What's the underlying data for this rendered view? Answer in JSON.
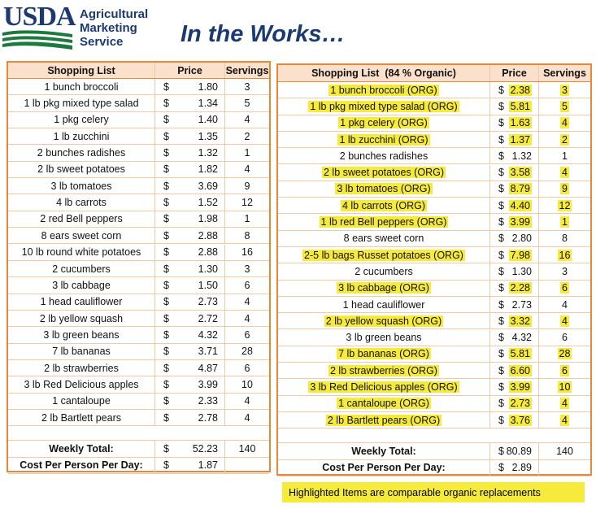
{
  "header": {
    "logo": "USDA",
    "agency": [
      "Agricultural",
      "Marketing",
      "Service"
    ],
    "title": "In the Works…"
  },
  "left_table": {
    "currency": "$",
    "columns": [
      "Shopping List",
      "Price",
      "Servings"
    ],
    "rows": [
      {
        "item": "1 bunch broccoli",
        "price": "1.80",
        "servings": 3
      },
      {
        "item": "1 lb pkg mixed type salad",
        "price": "1.34",
        "servings": 5
      },
      {
        "item": "1 pkg celery",
        "price": "1.40",
        "servings": 4
      },
      {
        "item": "1 lb zucchini",
        "price": "1.35",
        "servings": 2
      },
      {
        "item": "2 bunches radishes",
        "price": "1.32",
        "servings": 1
      },
      {
        "item": "2 lb sweet potatoes",
        "price": "1.82",
        "servings": 4
      },
      {
        "item": "3 lb tomatoes",
        "price": "3.69",
        "servings": 9
      },
      {
        "item": "4 lb carrots",
        "price": "1.52",
        "servings": 12
      },
      {
        "item": "2 red Bell peppers",
        "price": "1.98",
        "servings": 1
      },
      {
        "item": "8 ears sweet corn",
        "price": "2.88",
        "servings": 8
      },
      {
        "item": "10 lb round white potatoes",
        "price": "2.88",
        "servings": 16
      },
      {
        "item": "2 cucumbers",
        "price": "1.30",
        "servings": 3
      },
      {
        "item": "3 lb cabbage",
        "price": "1.50",
        "servings": 6
      },
      {
        "item": "1 head cauliflower",
        "price": "2.73",
        "servings": 4
      },
      {
        "item": "2 lb yellow squash",
        "price": "2.72",
        "servings": 4
      },
      {
        "item": "3 lb green beans",
        "price": "4.32",
        "servings": 6
      },
      {
        "item": "7 lb bananas",
        "price": "3.71",
        "servings": 28
      },
      {
        "item": "2 lb strawberries",
        "price": "4.87",
        "servings": 6
      },
      {
        "item": "3 lb Red Delicious apples",
        "price": "3.99",
        "servings": 10
      },
      {
        "item": "1 cantaloupe",
        "price": "2.33",
        "servings": 4
      },
      {
        "item": "2 lb Bartlett pears",
        "price": "2.78",
        "servings": 4
      }
    ],
    "total": {
      "label": "Weekly Total:",
      "price": "52.23",
      "servings": 140
    },
    "per_person": {
      "label": "Cost Per Person Per Day:",
      "price": "1.87"
    }
  },
  "right_table": {
    "currency": "$",
    "columns": [
      "Shopping List  (84 % Organic)",
      "Price",
      "Servings"
    ],
    "rows": [
      {
        "item": "1 bunch broccoli (ORG)",
        "price": "2.38",
        "servings": 3,
        "organic": true
      },
      {
        "item": "1 lb pkg mixed type salad (ORG)",
        "price": "5.81",
        "servings": 5,
        "organic": true
      },
      {
        "item": "1 pkg celery (ORG)",
        "price": "1.63",
        "servings": 4,
        "organic": true
      },
      {
        "item": "1 lb zucchini (ORG)",
        "price": "1.37",
        "servings": 2,
        "organic": true
      },
      {
        "item": "2 bunches radishes",
        "price": "1.32",
        "servings": 1,
        "organic": false
      },
      {
        "item": "2 lb sweet potatoes (ORG)",
        "price": "3.58",
        "servings": 4,
        "organic": true
      },
      {
        "item": "3 lb tomatoes (ORG)",
        "price": "8.79",
        "servings": 9,
        "organic": true
      },
      {
        "item": "4 lb carrots (ORG)",
        "price": "4.40",
        "servings": 12,
        "organic": true
      },
      {
        "item": "1 lb red Bell peppers (ORG)",
        "price": "3.99",
        "servings": 1,
        "organic": true
      },
      {
        "item": "8 ears sweet corn",
        "price": "2.80",
        "servings": 8,
        "organic": false
      },
      {
        "item": "2-5 lb bags Russet potatoes (ORG)",
        "price": "7.98",
        "servings": 16,
        "organic": true
      },
      {
        "item": "2 cucumbers",
        "price": "1.30",
        "servings": 3,
        "organic": false
      },
      {
        "item": "3 lb cabbage (ORG)",
        "price": "2.28",
        "servings": 6,
        "organic": true
      },
      {
        "item": "1 head cauliflower",
        "price": "2.73",
        "servings": 4,
        "organic": false
      },
      {
        "item": "2 lb yellow squash (ORG)",
        "price": "3.32",
        "servings": 4,
        "organic": true
      },
      {
        "item": "3 lb green beans",
        "price": "4.32",
        "servings": 6,
        "organic": false
      },
      {
        "item": "7 lb bananas (ORG)",
        "price": "5.81",
        "servings": 28,
        "organic": true
      },
      {
        "item": "2 lb strawberries (ORG)",
        "price": "6.60",
        "servings": 6,
        "organic": true
      },
      {
        "item": "3 lb Red Delicious apples (ORG)",
        "price": "3.99",
        "servings": 10,
        "organic": true
      },
      {
        "item": "1 cantaloupe (ORG)",
        "price": "2.73",
        "servings": 4,
        "organic": true
      },
      {
        "item": "2 lb Bartlett pears (ORG)",
        "price": "3.76",
        "servings": 4,
        "organic": true
      }
    ],
    "total": {
      "label": "Weekly Total:",
      "price": "80.89",
      "servings": 140
    },
    "per_person": {
      "label": "Cost Per Person Per Day:",
      "price": "2.89"
    },
    "note": "Highlighted Items are comparable organic replacements"
  }
}
